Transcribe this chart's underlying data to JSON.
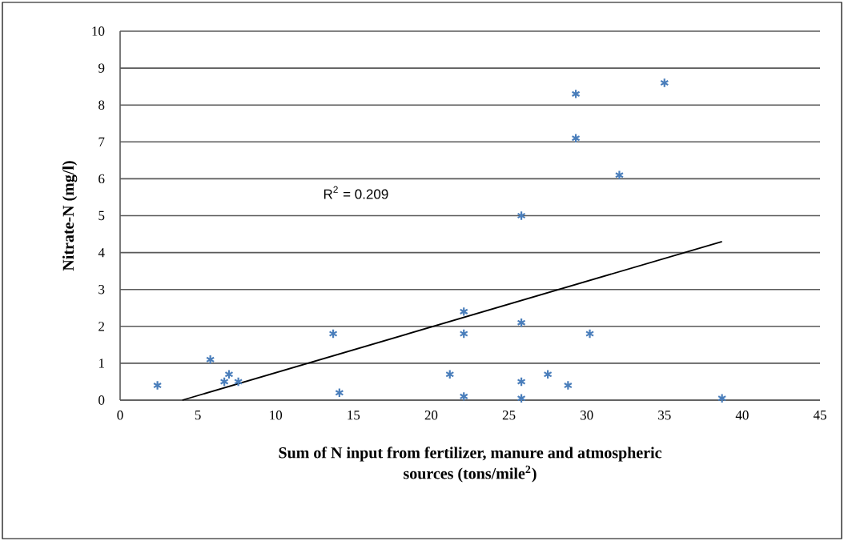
{
  "chart_data": {
    "type": "scatter",
    "xlabel": "Sum of N input from fertilizer, manure and atmospheric sources (tons/mile$^{2}$)",
    "ylabel": "Nitrate-N (mg/l)",
    "annotations": [
      "R$^{2}$ = 0.209"
    ],
    "series": [
      {
        "color": "#4a7ebb",
        "marker": "cross",
        "x": [
          2.4,
          5.8,
          7.0,
          6.7,
          7.6,
          13.7,
          14.1,
          21.2,
          22.1,
          22.1,
          22.1,
          25.8,
          25.8,
          25.8,
          25.8,
          27.5,
          28.8,
          30.2,
          29.3,
          29.3,
          32.1,
          35.0,
          38.7
        ],
        "values": [
          0.4,
          1.1,
          0.7,
          0.5,
          0.5,
          1.8,
          0.2,
          0.7,
          2.4,
          1.8,
          0.1,
          5.0,
          2.1,
          0.5,
          0.05,
          0.7,
          0.4,
          1.8,
          8.3,
          7.1,
          6.1,
          8.6,
          0.05
        ]
      },
      {
        "type": "line",
        "color": "#000000",
        "marker": "none",
        "line_style": "solid",
        "x": [
          4.0,
          38.7
        ],
        "values": [
          0,
          4.3
        ]
      }
    ],
    "xlim": [
      0,
      45
    ],
    "xticks": [
      0,
      5,
      10,
      15,
      20,
      25,
      30,
      35,
      40,
      45
    ],
    "ylim": [
      0,
      10
    ],
    "yticks": [
      0,
      1,
      2,
      3,
      4,
      5,
      6,
      7,
      8,
      9,
      10
    ],
    "grid": "y"
  }
}
